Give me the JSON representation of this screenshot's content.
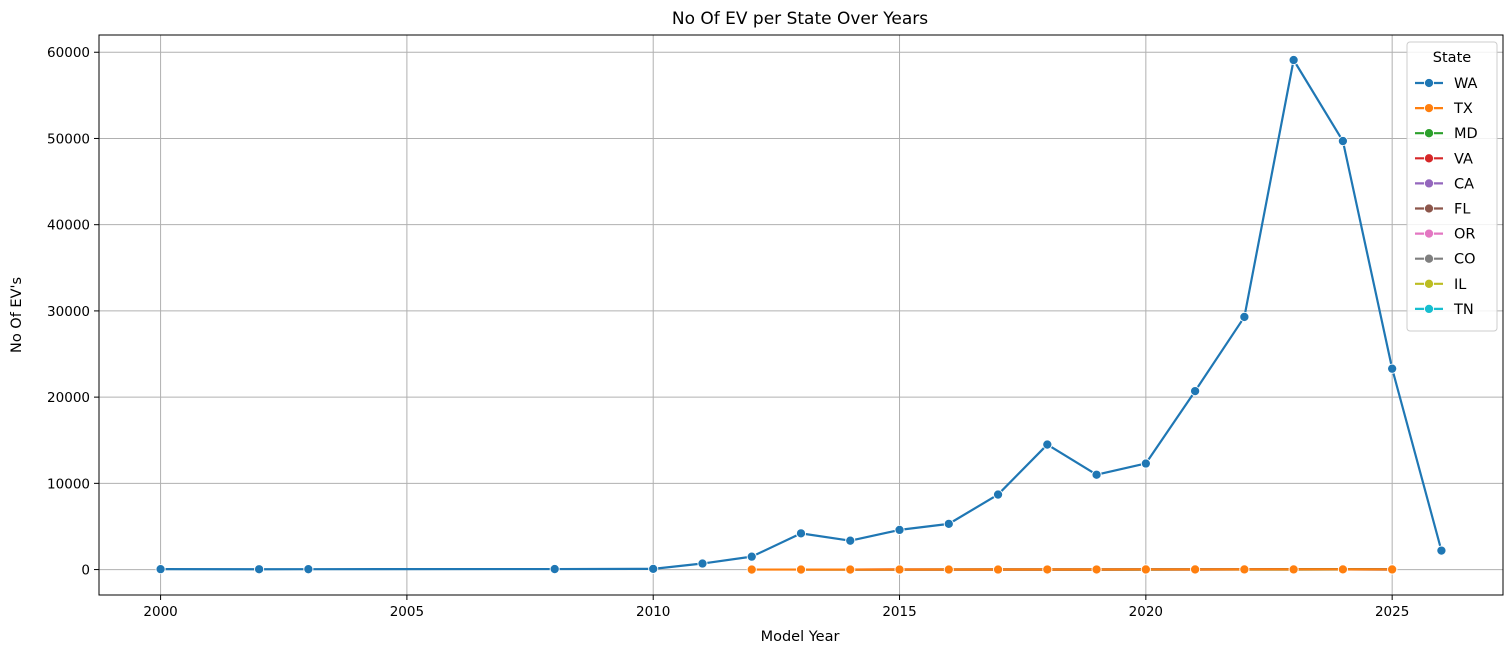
{
  "chart_data": {
    "type": "line",
    "title": "No Of EV per State Over Years",
    "xlabel": "Model Year",
    "ylabel": "No Of EV's",
    "xlim": [
      1998.75,
      2027.25
    ],
    "ylim": [
      -2950,
      62000
    ],
    "xticks": [
      2000,
      2005,
      2010,
      2015,
      2020,
      2025
    ],
    "yticks": [
      0,
      10000,
      20000,
      30000,
      40000,
      50000,
      60000
    ],
    "grid": true,
    "legend": {
      "title": "State",
      "position": "top-right"
    },
    "series": [
      {
        "name": "WA",
        "color": "#1f77b4",
        "x": [
          2000,
          2002,
          2003,
          2008,
          2010,
          2011,
          2012,
          2013,
          2014,
          2015,
          2016,
          2017,
          2018,
          2019,
          2020,
          2021,
          2022,
          2023,
          2024,
          2025,
          2026
        ],
        "y": [
          50,
          40,
          45,
          60,
          80,
          700,
          1500,
          4200,
          3350,
          4600,
          5300,
          8700,
          14500,
          11000,
          12300,
          20700,
          29300,
          59100,
          49700,
          23300,
          2200
        ]
      },
      {
        "name": "TX",
        "color": "#ff7f0e",
        "x": [
          2012,
          2013,
          2014,
          2015,
          2016,
          2017,
          2018,
          2019,
          2020,
          2021,
          2022,
          2023,
          2024,
          2025
        ],
        "y": [
          1,
          2,
          3,
          4,
          5,
          6,
          8,
          10,
          12,
          15,
          18,
          20,
          22,
          15
        ]
      },
      {
        "name": "MD",
        "color": "#2ca02c",
        "x": [
          2013,
          2014,
          2015,
          2016,
          2017,
          2018,
          2019,
          2020,
          2021,
          2022,
          2023,
          2024,
          2025
        ],
        "y": [
          1,
          2,
          3,
          4,
          5,
          6,
          8,
          10,
          12,
          15,
          18,
          20,
          12
        ]
      },
      {
        "name": "VA",
        "color": "#d62728",
        "x": [
          2013,
          2014,
          2015,
          2016,
          2017,
          2018,
          2019,
          2020,
          2021,
          2022,
          2023,
          2024,
          2025
        ],
        "y": [
          2,
          3,
          4,
          5,
          6,
          8,
          10,
          12,
          14,
          16,
          20,
          22,
          14
        ]
      },
      {
        "name": "CA",
        "color": "#9467bd",
        "x": [
          2014,
          2015,
          2016,
          2017,
          2018,
          2019,
          2020,
          2021,
          2022,
          2023,
          2024,
          2025
        ],
        "y": [
          3,
          4,
          5,
          6,
          8,
          10,
          12,
          15,
          20,
          25,
          30,
          20
        ]
      },
      {
        "name": "FL",
        "color": "#8c564b",
        "x": [
          2014,
          2015,
          2016,
          2017,
          2018,
          2019,
          2020,
          2021,
          2022,
          2023,
          2024,
          2025
        ],
        "y": [
          1,
          2,
          3,
          4,
          5,
          6,
          8,
          10,
          12,
          14,
          16,
          10
        ]
      },
      {
        "name": "OR",
        "color": "#e377c2",
        "x": [
          2015,
          2016,
          2017,
          2018,
          2019,
          2020,
          2021,
          2022,
          2023,
          2024,
          2025
        ],
        "y": [
          2,
          3,
          4,
          5,
          6,
          8,
          10,
          12,
          14,
          16,
          10
        ]
      },
      {
        "name": "CO",
        "color": "#7f7f7f",
        "x": [
          2017,
          2018,
          2019,
          2020,
          2021,
          2022,
          2023,
          2024,
          2025
        ],
        "y": [
          1,
          2,
          3,
          4,
          6,
          8,
          10,
          12,
          8
        ]
      },
      {
        "name": "IL",
        "color": "#bcbd22",
        "x": [
          2018,
          2019,
          2020,
          2021,
          2022,
          2023,
          2024,
          2025
        ],
        "y": [
          2,
          3,
          4,
          6,
          8,
          10,
          12,
          8
        ]
      },
      {
        "name": "TN",
        "color": "#17becf",
        "x": [
          2022,
          2023,
          2024
        ],
        "y": [
          4,
          6,
          8
        ]
      }
    ]
  }
}
